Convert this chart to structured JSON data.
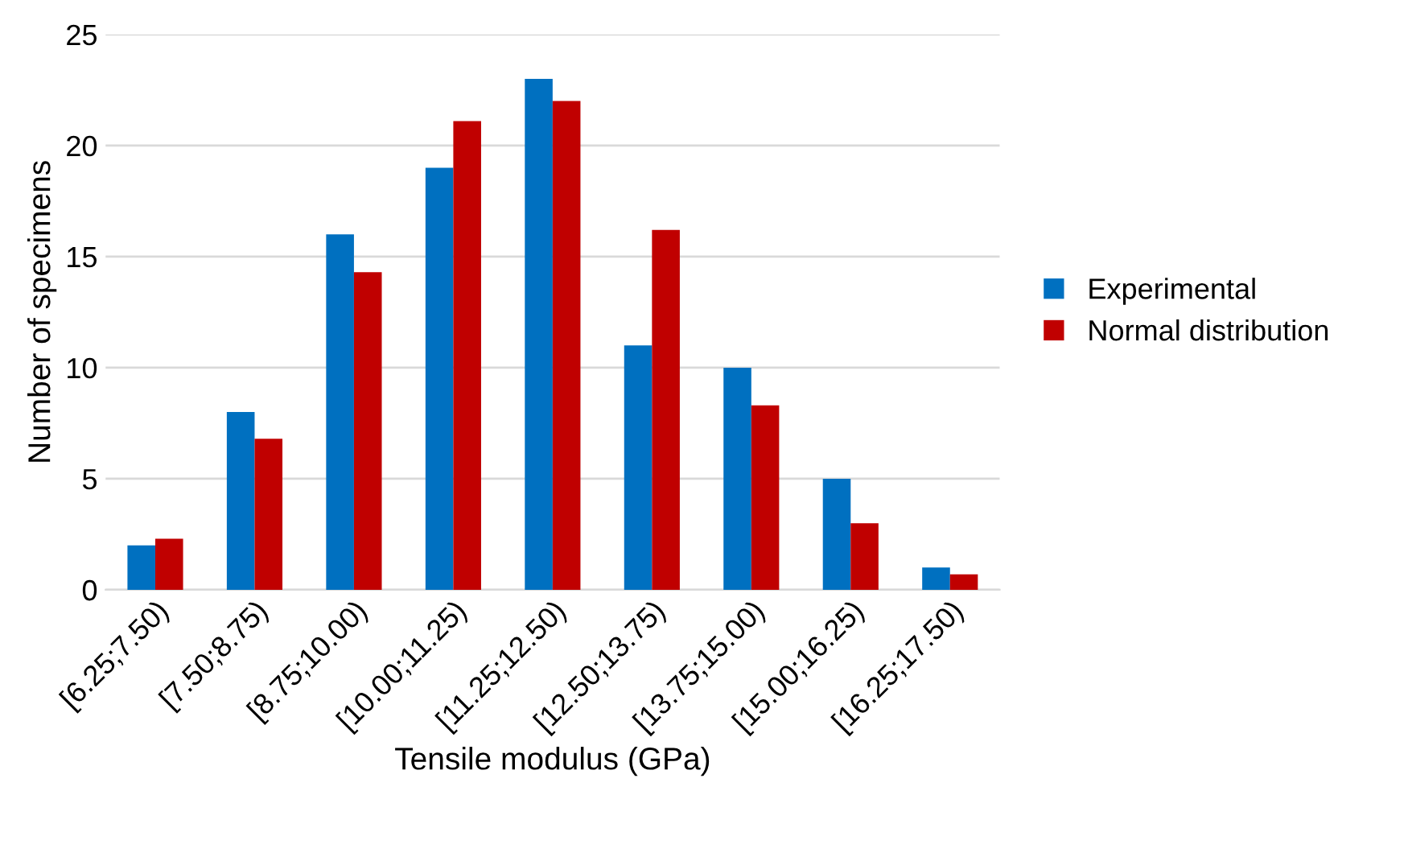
{
  "chart_data": {
    "type": "bar",
    "xlabel": "Tensile modulus (GPa)",
    "ylabel": "Number of specimens",
    "categories": [
      "[6.25;7.50)",
      "[7.50;8.75)",
      "[8.75;10.00)",
      "[10.00;11.25)",
      "[11.25;12.50)",
      "[12.50;13.75)",
      "[13.75;15.00)",
      "[15.00;16.25)",
      "[16.25;17.50)"
    ],
    "series": [
      {
        "name": "Experimental",
        "color": "#0070c0",
        "values": [
          2,
          8,
          16,
          19,
          23,
          11,
          10,
          5,
          1
        ]
      },
      {
        "name": "Normal distribution",
        "color": "#c00000",
        "values": [
          2.3,
          6.8,
          14.3,
          21.1,
          22.0,
          16.2,
          8.3,
          3.0,
          0.7
        ]
      }
    ],
    "ylim": [
      0,
      25
    ],
    "yticks": [
      0,
      5,
      10,
      15,
      20,
      25
    ],
    "grid": "y",
    "legend": "right"
  }
}
